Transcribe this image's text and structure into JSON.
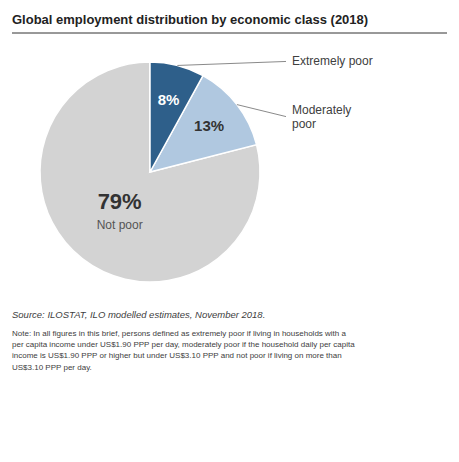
{
  "chart_data": {
    "type": "pie",
    "title": "Global employment distribution by economic class (2018)",
    "categories": [
      "Not poor",
      "Moderately\npoor",
      "Extremely poor"
    ],
    "values": [
      79,
      13,
      8
    ],
    "value_labels": [
      "79%",
      "13%",
      "8%"
    ],
    "data_labels": true,
    "colors": [
      "#d3d3d3",
      "#b0c8e0",
      "#2e5f8a"
    ],
    "annotations": [
      "Source: ILOSTAT, ILO modelled estimates, November 2018.",
      "Note: In all figures in this brief, persons defined as extremely poor if living in households with a\nper capita income under US$1.90 PPP per day, moderately poor if the household daily per capita\nincome is US$1.90 PPP or higher but under US$3.10 PPP and not poor if living on more than\nUS$3.10 PPP per day."
    ]
  }
}
